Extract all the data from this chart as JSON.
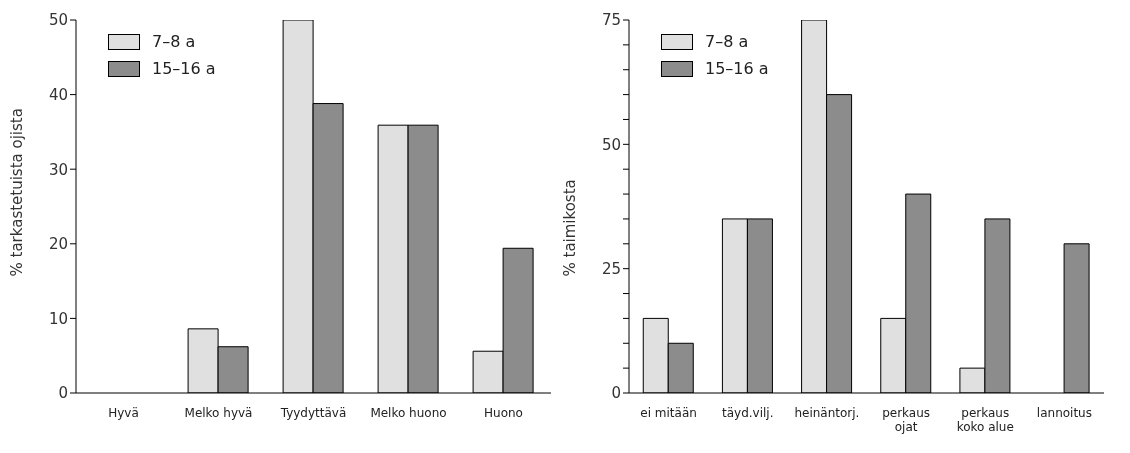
{
  "chart_data": [
    {
      "type": "bar",
      "ylabel": "% tarkastetuista ojista",
      "categories": [
        "Hyvä",
        "Melko hyvä",
        "Tyydyttävä",
        "Melko huono",
        "Huono"
      ],
      "series": [
        {
          "name": "7–8 a",
          "color": "#e0e0e0",
          "values": [
            0,
            8.6,
            50,
            35.9,
            5.6
          ]
        },
        {
          "name": "15–16 a",
          "color": "#8c8c8c",
          "values": [
            0,
            6.2,
            38.8,
            35.9,
            19.4
          ]
        }
      ],
      "ylim": [
        0,
        50
      ],
      "yticks": [
        0,
        10,
        20,
        30,
        40,
        50
      ],
      "grid": false,
      "legend": "top left"
    },
    {
      "type": "bar",
      "ylabel": "% taimikosta",
      "categories": [
        "ei mitään",
        "täyd.vilj.",
        "heinäntorj.",
        "perkaus\nojat",
        "perkaus\nkoko alue",
        "lannoitus"
      ],
      "series": [
        {
          "name": "7–8 a",
          "color": "#e0e0e0",
          "values": [
            15,
            35,
            75,
            15,
            5,
            0
          ]
        },
        {
          "name": "15–16 a",
          "color": "#8c8c8c",
          "values": [
            10,
            35,
            60,
            40,
            35,
            30
          ]
        }
      ],
      "ylim": [
        0,
        75
      ],
      "yticks": [
        0,
        {
          "value": 5,
          "label": null
        },
        {
          "value": 10,
          "label": null
        },
        {
          "value": 15,
          "label": null
        },
        {
          "value": 20,
          "label": null
        },
        25,
        {
          "value": 30,
          "label": null
        },
        {
          "value": 35,
          "label": null
        },
        {
          "value": 40,
          "label": null
        },
        {
          "value": 45,
          "label": null
        },
        50,
        {
          "value": 55,
          "label": null
        },
        {
          "value": 60,
          "label": null
        },
        {
          "value": 65,
          "label": null
        },
        {
          "value": 70,
          "label": null
        },
        75
      ],
      "grid": false,
      "legend": "top left"
    }
  ]
}
